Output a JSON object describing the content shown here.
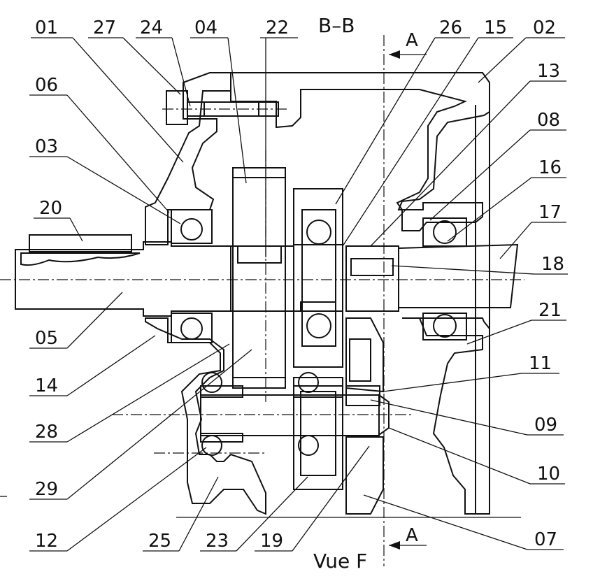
{
  "section_title": "B–B",
  "view_label": "Vue F",
  "section_marker_top": "A",
  "section_marker_bottom": "A",
  "colors": {
    "housing": "#F5C430",
    "input_shaft": "#5560F0",
    "output_shaft": "#D64CE8",
    "intermediate_shaft": "#EE2C50",
    "hatch": "#2a2a2a",
    "line": "#111111"
  },
  "labels": {
    "p01": "01",
    "p27": "27",
    "p24": "24",
    "p04": "04",
    "p22": "22",
    "p26": "26",
    "p15": "15",
    "p02": "02",
    "p13": "13",
    "p08": "08",
    "p16": "16",
    "p17": "17",
    "p18": "18",
    "p21": "21",
    "p11": "11",
    "p09": "09",
    "p10": "10",
    "p07": "07",
    "p06": "06",
    "p03": "03",
    "p20": "20",
    "p05": "05",
    "p14": "14",
    "p28": "28",
    "p29": "29",
    "p12": "12",
    "p25": "25",
    "p23": "23",
    "p19": "19"
  }
}
